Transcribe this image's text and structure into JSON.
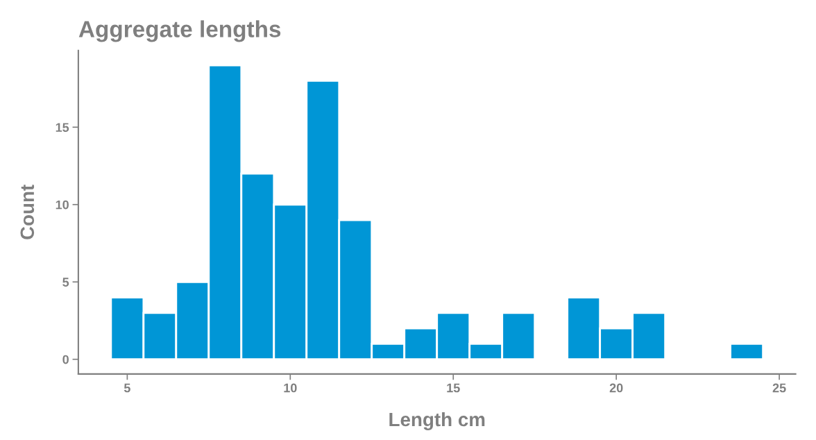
{
  "chart_data": {
    "type": "histogram",
    "title": "Aggregate lengths",
    "xlabel": "Length cm",
    "ylabel": "Count",
    "bins": [
      4.5,
      5.5,
      6.5,
      7.5,
      8.5,
      9.5,
      10.5,
      11.5,
      12.5,
      13.5,
      14.5,
      15.5,
      16.5,
      17.5,
      18.5,
      19.5,
      20.5,
      21.5,
      22.5,
      23.5,
      24.5
    ],
    "values": [
      4,
      3,
      5,
      19,
      12,
      10,
      18,
      9,
      1,
      2,
      3,
      1,
      3,
      0,
      4,
      2,
      3,
      0,
      0,
      1
    ],
    "color": "#0096d6",
    "xlim": [
      3.5,
      25.5
    ],
    "xticks": [
      5,
      10,
      15,
      20,
      25
    ],
    "ylim": [
      -0.95,
      19.95
    ],
    "yticks": [
      0,
      5,
      10,
      15
    ],
    "grid": false
  }
}
